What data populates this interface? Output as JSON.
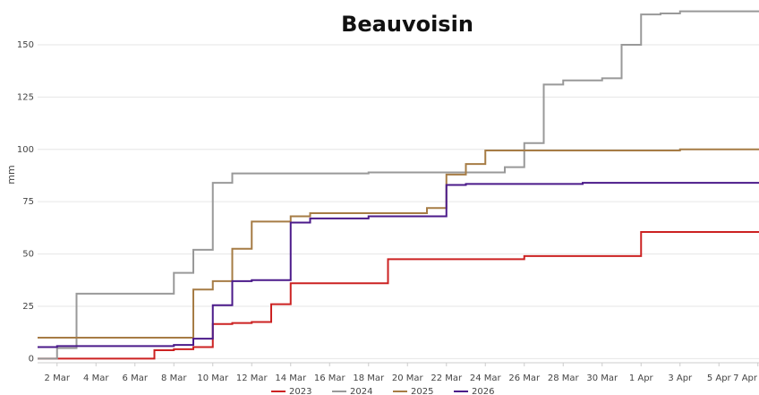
{
  "chart_data": {
    "type": "step",
    "title": "Beauvoisin",
    "y_label": "mm",
    "categories": [
      null,
      "2 Mar",
      null,
      "4 Mar",
      null,
      "6 Mar",
      null,
      "8 Mar",
      null,
      "10 Mar",
      null,
      "12 Mar",
      null,
      "14 Mar",
      null,
      "16 Mar",
      null,
      "18 Mar",
      null,
      "20 Mar",
      null,
      "22 Mar",
      null,
      "24 Mar",
      null,
      "26 Mar",
      null,
      "28 Mar",
      null,
      "30 Mar",
      null,
      "1 Apr",
      null,
      "3 Apr",
      null,
      "5 Apr",
      null,
      "7 Apr"
    ],
    "series": [
      {
        "name": "2023",
        "color": "#cc2222",
        "values": [
          0,
          0,
          0,
          0,
          0,
          0,
          4,
          4.5,
          5.5,
          16.5,
          17,
          17.5,
          26,
          36,
          36,
          36,
          36,
          36,
          47.5,
          47.5,
          47.5,
          47.5,
          47.5,
          47.5,
          47.5,
          49,
          49,
          49,
          49,
          49,
          49,
          60.5,
          60.5,
          60.5,
          60.5,
          60.5,
          60.5,
          60.5
        ]
      },
      {
        "name": "2024",
        "color": "#999999",
        "values": [
          0,
          5,
          31,
          31,
          31,
          31,
          31,
          41,
          52,
          84,
          88.5,
          88.5,
          88.5,
          88.5,
          88.5,
          88.5,
          88.5,
          89,
          89,
          89,
          89,
          89,
          89,
          89,
          91.5,
          103,
          131,
          133,
          133,
          134,
          150,
          164.5,
          165,
          166,
          166,
          166,
          166,
          166
        ]
      },
      {
        "name": "2025",
        "color": "#a67c45",
        "values": [
          10,
          10,
          10,
          10,
          10,
          10,
          10,
          10,
          33,
          37,
          52.5,
          65.5,
          65.5,
          68,
          69.5,
          69.5,
          69.5,
          69.5,
          69.5,
          69.5,
          72,
          88,
          93,
          99.5,
          99.5,
          99.5,
          99.5,
          99.5,
          99.5,
          99.5,
          99.5,
          99.5,
          99.5,
          100,
          100,
          100,
          100,
          100
        ]
      },
      {
        "name": "2026",
        "color": "#4b1a8a",
        "values": [
          5.5,
          6,
          6,
          6,
          6,
          6,
          6,
          6.5,
          9.5,
          25.5,
          37,
          37.5,
          37.5,
          65,
          67,
          67,
          67,
          68,
          68,
          68,
          68,
          83,
          83.5,
          83.5,
          83.5,
          83.5,
          83.5,
          83.5,
          84,
          84,
          84,
          84,
          84,
          84,
          84,
          84,
          84,
          84
        ]
      }
    ],
    "ylim": [
      -2,
      168
    ],
    "yticks": [
      0,
      25,
      50,
      75,
      100,
      125,
      150
    ],
    "grid": true,
    "legend": "bottom"
  }
}
